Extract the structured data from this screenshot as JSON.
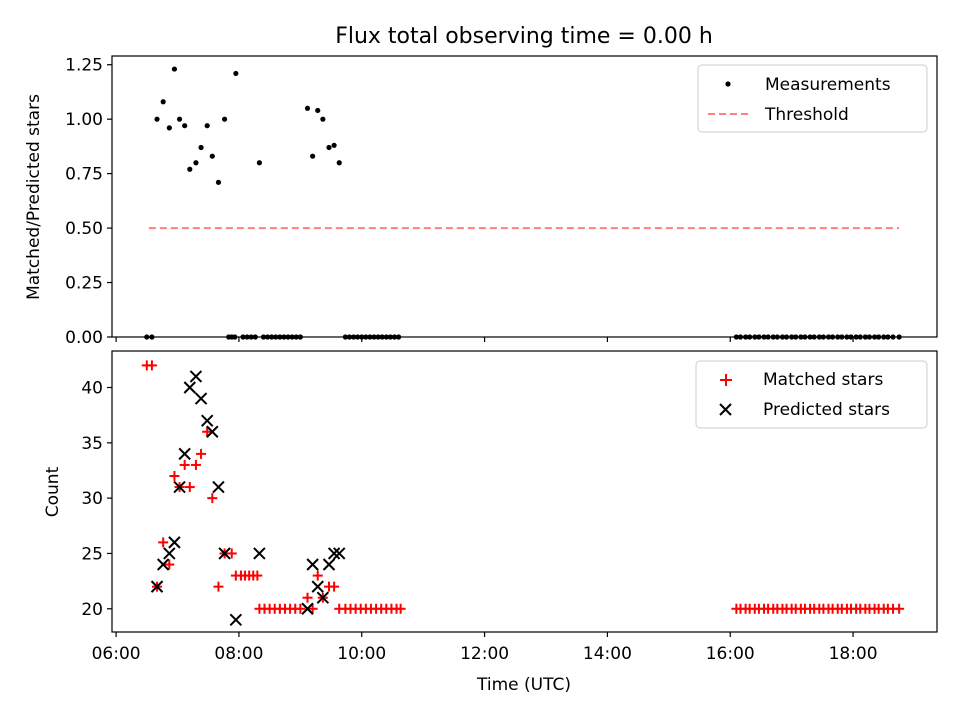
{
  "title": "Flux total observing time = 0.00 h",
  "chart_data": [
    {
      "type": "scatter",
      "ylabel": "Matched/Predicted stars",
      "xlim": [
        "05:56",
        "19:22"
      ],
      "ylim": [
        0,
        1.29
      ],
      "yticks": [
        "0.00",
        "0.25",
        "0.50",
        "0.75",
        "1.00",
        "1.25"
      ],
      "legend_position": "top-right",
      "legend": {
        "measurements": "Measurements",
        "threshold": "Threshold"
      },
      "measurements_color": "#000000",
      "threshold_color": "#ff7f7f",
      "threshold": {
        "value": 0.5,
        "x_start": "06:32",
        "x_end": "18:45"
      },
      "measurements": [
        {
          "x": "06:40",
          "y": 1.0
        },
        {
          "x": "06:46",
          "y": 1.08
        },
        {
          "x": "06:52",
          "y": 0.96
        },
        {
          "x": "06:57",
          "y": 1.23
        },
        {
          "x": "07:02",
          "y": 1.0
        },
        {
          "x": "07:07",
          "y": 0.97
        },
        {
          "x": "07:12",
          "y": 0.77
        },
        {
          "x": "07:18",
          "y": 0.8
        },
        {
          "x": "07:23",
          "y": 0.87
        },
        {
          "x": "07:29",
          "y": 0.97
        },
        {
          "x": "07:34",
          "y": 0.83
        },
        {
          "x": "07:40",
          "y": 0.71
        },
        {
          "x": "07:46",
          "y": 1.0
        },
        {
          "x": "07:57",
          "y": 1.21
        },
        {
          "x": "08:20",
          "y": 0.8
        },
        {
          "x": "09:07",
          "y": 1.05
        },
        {
          "x": "09:12",
          "y": 0.83
        },
        {
          "x": "09:17",
          "y": 1.04
        },
        {
          "x": "09:22",
          "y": 1.0
        },
        {
          "x": "09:28",
          "y": 0.87
        },
        {
          "x": "09:33",
          "y": 0.88
        },
        {
          "x": "09:38",
          "y": 0.8
        }
      ],
      "zero_measurements": [
        "06:30",
        "06:35",
        "07:50",
        "07:53",
        "07:56",
        "08:04",
        "08:08",
        "08:12",
        "08:16",
        "08:24",
        "08:28",
        "08:32",
        "08:36",
        "08:40",
        "08:44",
        "08:48",
        "08:52",
        "08:56",
        "09:00",
        "09:44",
        "09:48",
        "09:52",
        "09:56",
        "10:00",
        "10:04",
        "10:08",
        "10:12",
        "10:16",
        "10:20",
        "10:24",
        "10:28",
        "10:32",
        "10:36",
        "16:06",
        "16:10",
        "16:15",
        "16:19",
        "16:24",
        "16:28",
        "16:33",
        "16:37",
        "16:42",
        "16:46",
        "16:51",
        "16:55",
        "17:00",
        "17:04",
        "17:09",
        "17:13",
        "17:18",
        "17:22",
        "17:27",
        "17:31",
        "17:36",
        "17:40",
        "17:45",
        "17:49",
        "17:54",
        "17:58",
        "18:03",
        "18:07",
        "18:12",
        "18:16",
        "18:21",
        "18:25",
        "18:30",
        "18:34",
        "18:39",
        "18:45"
      ]
    },
    {
      "type": "scatter",
      "xlabel": "Time (UTC)",
      "ylabel": "Count",
      "xlim": [
        "05:56",
        "19:22"
      ],
      "ylim": [
        17.9,
        43.3
      ],
      "xticks": [
        "06:00",
        "08:00",
        "10:00",
        "12:00",
        "14:00",
        "16:00",
        "18:00"
      ],
      "yticks": [
        "20",
        "25",
        "30",
        "35",
        "40"
      ],
      "legend_position": "top-right",
      "matched_color": "#ff0000",
      "predicted_color": "#000000",
      "series": [
        {
          "name": "Matched stars",
          "points": [
            {
              "x": "06:30",
              "y": 42
            },
            {
              "x": "06:35",
              "y": 42
            },
            {
              "x": "06:40",
              "y": 22
            },
            {
              "x": "06:46",
              "y": 26
            },
            {
              "x": "06:52",
              "y": 24
            },
            {
              "x": "06:57",
              "y": 32
            },
            {
              "x": "07:02",
              "y": 31
            },
            {
              "x": "07:07",
              "y": 33
            },
            {
              "x": "07:12",
              "y": 31
            },
            {
              "x": "07:18",
              "y": 33
            },
            {
              "x": "07:23",
              "y": 34
            },
            {
              "x": "07:29",
              "y": 36
            },
            {
              "x": "07:34",
              "y": 30
            },
            {
              "x": "07:40",
              "y": 22
            },
            {
              "x": "07:46",
              "y": 25
            },
            {
              "x": "07:53",
              "y": 25
            },
            {
              "x": "07:57",
              "y": 23
            },
            {
              "x": "08:02",
              "y": 23
            },
            {
              "x": "08:06",
              "y": 23
            },
            {
              "x": "08:10",
              "y": 23
            },
            {
              "x": "08:14",
              "y": 23
            },
            {
              "x": "08:18",
              "y": 23
            },
            {
              "x": "08:20",
              "y": 20
            },
            {
              "x": "08:25",
              "y": 20
            },
            {
              "x": "08:30",
              "y": 20
            },
            {
              "x": "08:35",
              "y": 20
            },
            {
              "x": "08:40",
              "y": 20
            },
            {
              "x": "08:45",
              "y": 20
            },
            {
              "x": "08:50",
              "y": 20
            },
            {
              "x": "08:55",
              "y": 20
            },
            {
              "x": "09:00",
              "y": 20
            },
            {
              "x": "09:07",
              "y": 21
            },
            {
              "x": "09:12",
              "y": 20
            },
            {
              "x": "09:17",
              "y": 23
            },
            {
              "x": "09:22",
              "y": 21
            },
            {
              "x": "09:28",
              "y": 22
            },
            {
              "x": "09:33",
              "y": 22
            },
            {
              "x": "09:38",
              "y": 20
            },
            {
              "x": "09:44",
              "y": 20
            },
            {
              "x": "09:49",
              "y": 20
            },
            {
              "x": "09:54",
              "y": 20
            },
            {
              "x": "09:59",
              "y": 20
            },
            {
              "x": "10:04",
              "y": 20
            },
            {
              "x": "10:09",
              "y": 20
            },
            {
              "x": "10:14",
              "y": 20
            },
            {
              "x": "10:19",
              "y": 20
            },
            {
              "x": "10:24",
              "y": 20
            },
            {
              "x": "10:29",
              "y": 20
            },
            {
              "x": "10:34",
              "y": 20
            },
            {
              "x": "10:38",
              "y": 20
            },
            {
              "x": "16:06",
              "y": 20
            },
            {
              "x": "16:10",
              "y": 20
            },
            {
              "x": "16:15",
              "y": 20
            },
            {
              "x": "16:19",
              "y": 20
            },
            {
              "x": "16:24",
              "y": 20
            },
            {
              "x": "16:28",
              "y": 20
            },
            {
              "x": "16:33",
              "y": 20
            },
            {
              "x": "16:37",
              "y": 20
            },
            {
              "x": "16:42",
              "y": 20
            },
            {
              "x": "16:46",
              "y": 20
            },
            {
              "x": "16:51",
              "y": 20
            },
            {
              "x": "16:55",
              "y": 20
            },
            {
              "x": "17:00",
              "y": 20
            },
            {
              "x": "17:04",
              "y": 20
            },
            {
              "x": "17:09",
              "y": 20
            },
            {
              "x": "17:13",
              "y": 20
            },
            {
              "x": "17:18",
              "y": 20
            },
            {
              "x": "17:22",
              "y": 20
            },
            {
              "x": "17:27",
              "y": 20
            },
            {
              "x": "17:31",
              "y": 20
            },
            {
              "x": "17:36",
              "y": 20
            },
            {
              "x": "17:40",
              "y": 20
            },
            {
              "x": "17:45",
              "y": 20
            },
            {
              "x": "17:49",
              "y": 20
            },
            {
              "x": "17:54",
              "y": 20
            },
            {
              "x": "17:58",
              "y": 20
            },
            {
              "x": "18:03",
              "y": 20
            },
            {
              "x": "18:07",
              "y": 20
            },
            {
              "x": "18:12",
              "y": 20
            },
            {
              "x": "18:16",
              "y": 20
            },
            {
              "x": "18:21",
              "y": 20
            },
            {
              "x": "18:25",
              "y": 20
            },
            {
              "x": "18:30",
              "y": 20
            },
            {
              "x": "18:34",
              "y": 20
            },
            {
              "x": "18:39",
              "y": 20
            },
            {
              "x": "18:45",
              "y": 20
            }
          ]
        },
        {
          "name": "Predicted stars",
          "points": [
            {
              "x": "06:40",
              "y": 22
            },
            {
              "x": "06:46",
              "y": 24
            },
            {
              "x": "06:52",
              "y": 25
            },
            {
              "x": "06:57",
              "y": 26
            },
            {
              "x": "07:02",
              "y": 31
            },
            {
              "x": "07:07",
              "y": 34
            },
            {
              "x": "07:12",
              "y": 40
            },
            {
              "x": "07:18",
              "y": 41
            },
            {
              "x": "07:23",
              "y": 39
            },
            {
              "x": "07:29",
              "y": 37
            },
            {
              "x": "07:34",
              "y": 36
            },
            {
              "x": "07:40",
              "y": 31
            },
            {
              "x": "07:46",
              "y": 25
            },
            {
              "x": "07:57",
              "y": 19
            },
            {
              "x": "08:20",
              "y": 25
            },
            {
              "x": "09:07",
              "y": 20
            },
            {
              "x": "09:12",
              "y": 24
            },
            {
              "x": "09:17",
              "y": 22
            },
            {
              "x": "09:22",
              "y": 21
            },
            {
              "x": "09:28",
              "y": 24
            },
            {
              "x": "09:33",
              "y": 25
            },
            {
              "x": "09:38",
              "y": 25
            }
          ]
        }
      ]
    }
  ]
}
